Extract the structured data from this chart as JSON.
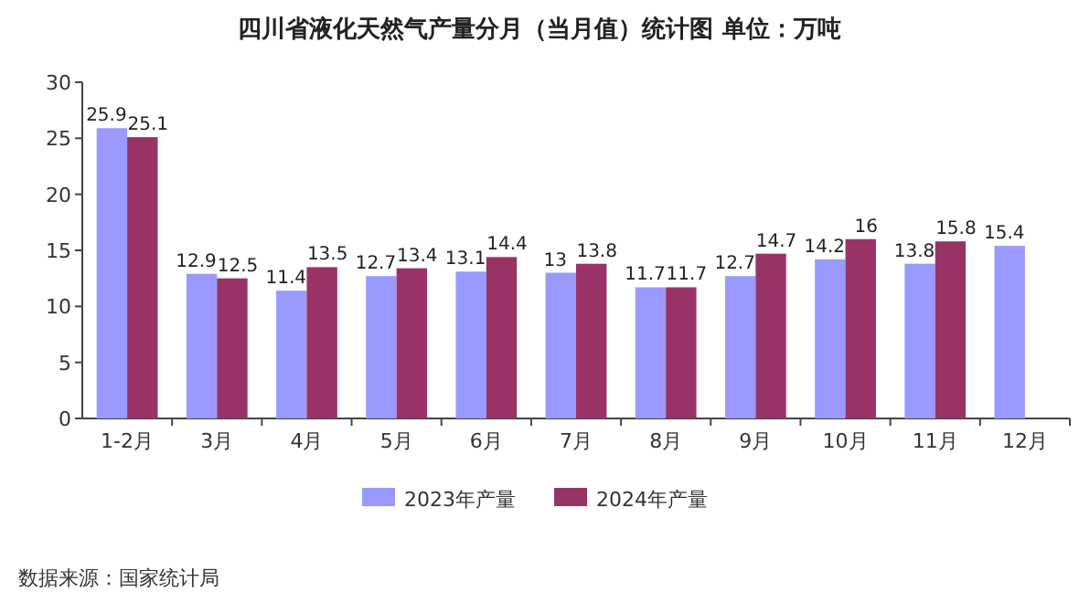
{
  "chart_data": {
    "type": "bar",
    "title": "四川省液化天然气产量分月（当月值）统计图 单位：万吨",
    "categories": [
      "1-2月",
      "3月",
      "4月",
      "5月",
      "6月",
      "7月",
      "8月",
      "9月",
      "10月",
      "11月",
      "12月"
    ],
    "series": [
      {
        "name": "2023年产量",
        "color": "#9999ff",
        "values": [
          25.9,
          12.9,
          11.4,
          12.7,
          13.1,
          13,
          11.7,
          12.7,
          14.2,
          13.8,
          15.4
        ]
      },
      {
        "name": "2024年产量",
        "color": "#993366",
        "values": [
          25.1,
          12.5,
          13.5,
          13.4,
          14.4,
          13.8,
          11.7,
          14.7,
          16,
          15.8,
          null
        ]
      }
    ],
    "ylim": [
      0,
      30
    ],
    "yticks": [
      0,
      5,
      10,
      15,
      20,
      25,
      30
    ],
    "data_labels": true,
    "legend": "bottom",
    "annotations": [
      "数据来源：国家统计局"
    ]
  }
}
